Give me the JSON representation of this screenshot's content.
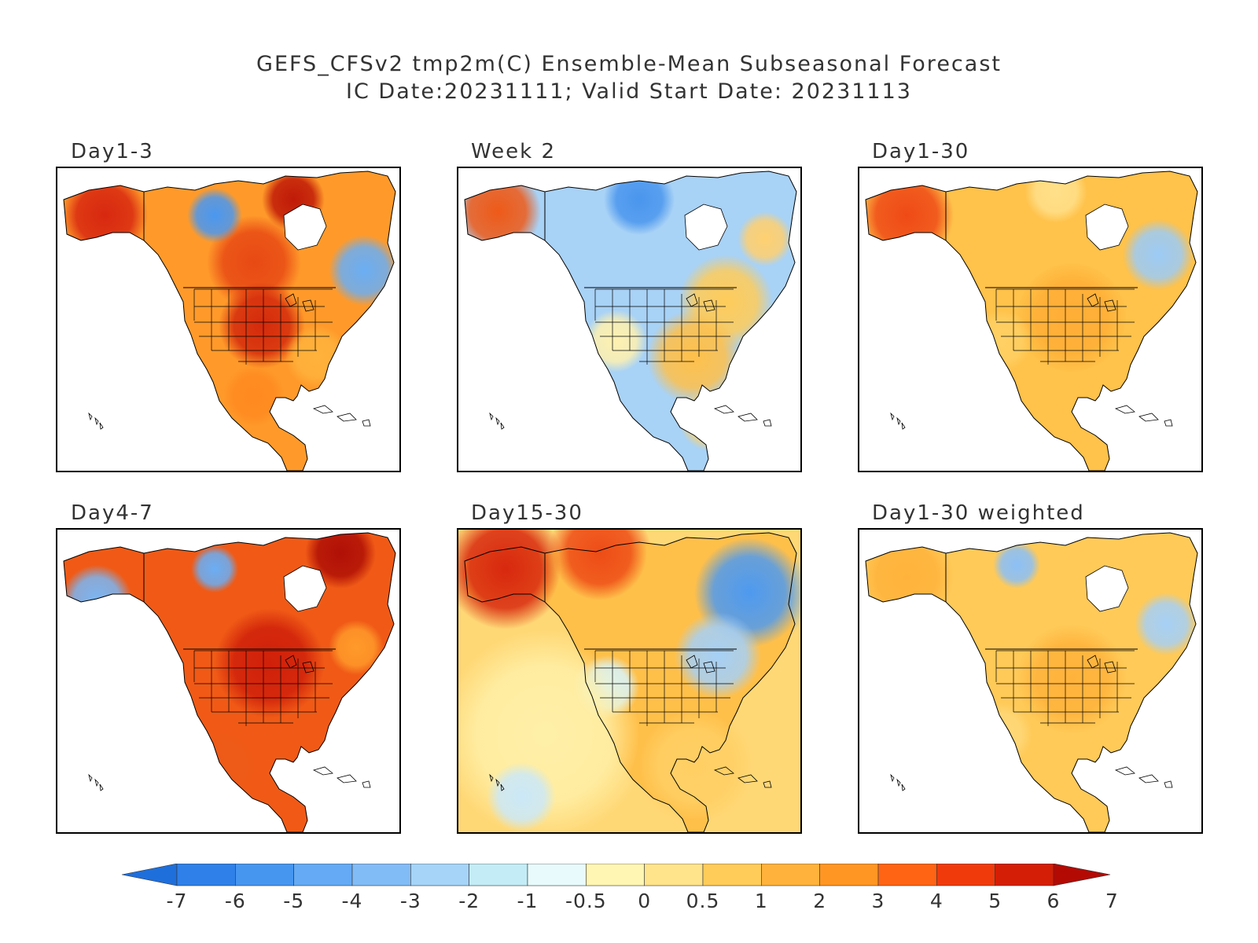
{
  "title": {
    "line1": "GEFS_CFSv2 tmp2m(C) Ensemble-Mean Subseasonal Forecast",
    "line2": "IC Date:20231111; Valid Start Date: 20231113"
  },
  "panels": [
    {
      "label": "Day1-3",
      "scheme": "day13"
    },
    {
      "label": "Week 2",
      "scheme": "week2"
    },
    {
      "label": "Day1-30",
      "scheme": "day130"
    },
    {
      "label": "Day4-7",
      "scheme": "day47"
    },
    {
      "label": "Day15-30",
      "scheme": "day1530"
    },
    {
      "label": "Day1-30 weighted",
      "scheme": "day130w"
    }
  ],
  "colorbar": {
    "tick_labels": [
      "-7",
      "-6",
      "-5",
      "-4",
      "-3",
      "-2",
      "-1",
      "-0.5",
      "0",
      "0.5",
      "1",
      "2",
      "3",
      "4",
      "5",
      "6",
      "7"
    ],
    "colors": [
      "#1e6fdc",
      "#2f80e8",
      "#4696f0",
      "#64aaf4",
      "#82bcf6",
      "#a6d4f8",
      "#c4ecf6",
      "#e8fafc",
      "#fff6b4",
      "#ffe48c",
      "#ffcc5a",
      "#ffb33c",
      "#ff9624",
      "#ff6414",
      "#f03a0c",
      "#d41e06",
      "#b40a04"
    ]
  }
}
